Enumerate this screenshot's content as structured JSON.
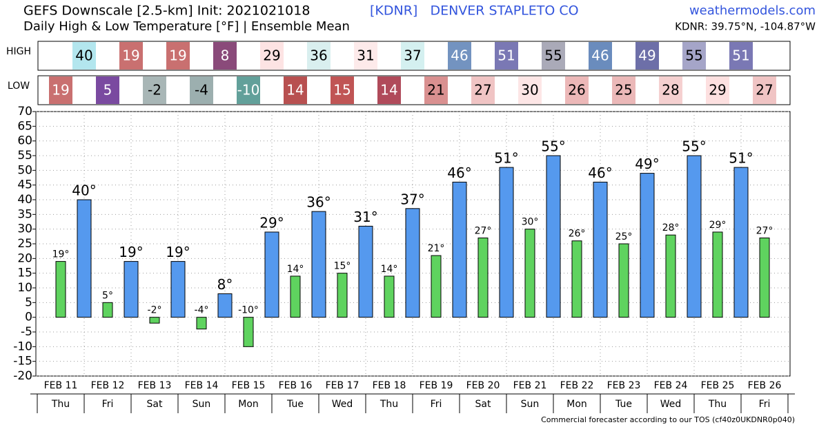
{
  "chart_data": {
    "type": "bar",
    "title": "GEFS Downscale [2.5-km] Init: 2021021018",
    "station": "[KDNR]   DENVER STAPLETO CO",
    "site": "weathermodels.com",
    "subtitle": "Daily High & Low Temperature [°F] | Ensemble Mean",
    "location": "KDNR: 39.75°N, -104.87°W",
    "footer": "Commercial forecaster according to our TOS (cf40z0UKDNR0p040)",
    "categories": [
      "FEB 11",
      "FEB 12",
      "FEB 13",
      "FEB 14",
      "FEB 15",
      "FEB 16",
      "FEB 17",
      "FEB 18",
      "FEB 19",
      "FEB 20",
      "FEB 21",
      "FEB 22",
      "FEB 23",
      "FEB 24",
      "FEB 25",
      "FEB 26"
    ],
    "weekdays": [
      "Thu",
      "Fri",
      "Sat",
      "Sun",
      "Mon",
      "Tue",
      "Wed",
      "Thu",
      "Fri",
      "Sat",
      "Sun",
      "Mon",
      "Tue",
      "Wed",
      "Thu",
      "Fri"
    ],
    "series": [
      {
        "name": "HIGH",
        "color": "#5599ee",
        "values": [
          40,
          19,
          19,
          8,
          29,
          36,
          31,
          37,
          46,
          51,
          55,
          46,
          49,
          55,
          51,
          null
        ],
        "value_labels": [
          "40°",
          "19°",
          "19°",
          "8°",
          "29°",
          "36°",
          "31°",
          "37°",
          "46°",
          "51°",
          "55°",
          "46°",
          "49°",
          "55°",
          "51°",
          null
        ],
        "cell_colors": [
          "#b3e6ee",
          "#c97070",
          "#c97070",
          "#8a4a7a",
          "#fde3e3",
          "#d9efef",
          "#fdeaea",
          "#d4f0f0",
          "#7393c0",
          "#7a78b4",
          "#aaaab8",
          "#6a8cbd",
          "#6d6fa8",
          "#a5a5c8",
          "#7a78b4",
          null
        ]
      },
      {
        "name": "LOW",
        "color": "#5fd35f",
        "values": [
          19,
          5,
          -2,
          -4,
          -10,
          14,
          15,
          14,
          21,
          27,
          30,
          26,
          25,
          28,
          29,
          27
        ],
        "value_labels": [
          "19°",
          "5°",
          "-2°",
          "-4°",
          "-10°",
          "14°",
          "15°",
          "14°",
          "21°",
          "27°",
          "30°",
          "26°",
          "25°",
          "28°",
          "29°",
          "27°"
        ],
        "cell_colors": [
          "#c97070",
          "#7a4aa0",
          "#a8b6b6",
          "#9cafaf",
          "#62a09a",
          "#b85050",
          "#c05555",
          "#b04a5a",
          "#d99090",
          "#f0c4c4",
          "#fde6e6",
          "#ecb8b8",
          "#ebb8b8",
          "#f5d0d0",
          "#fde0e0",
          "#f0c4c4"
        ]
      }
    ],
    "ylim": [
      -20,
      70
    ],
    "yticks": [
      -20,
      -15,
      -10,
      -5,
      0,
      5,
      10,
      15,
      20,
      25,
      30,
      35,
      40,
      45,
      50,
      55,
      60,
      65,
      70
    ],
    "grid": true
  }
}
